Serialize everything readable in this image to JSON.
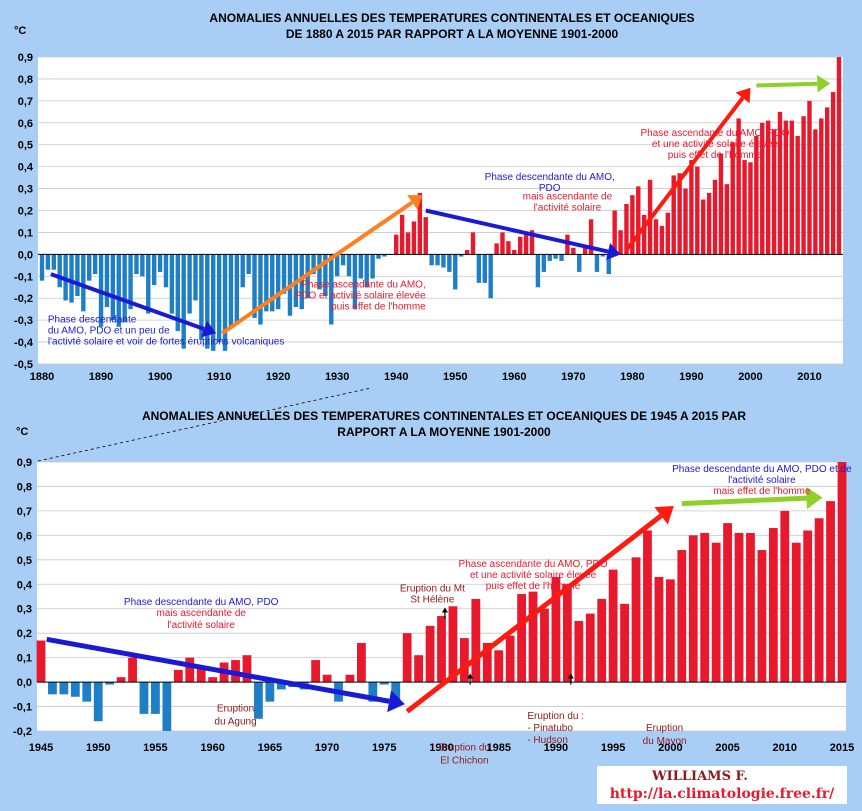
{
  "colors": {
    "background": "#a9cef6",
    "plot_background": "#ffffff",
    "grid": "#c8c8c8",
    "positive_bar": "#e8192c",
    "negative_bar": "#1f7fc6",
    "arrow_blue": "#1a1ad6",
    "arrow_orange": "#ff7f1e",
    "arrow_red": "#ff1a10",
    "arrow_green": "#8ecf2a",
    "text_blue": "#1a1ad6",
    "text_red": "#e8192c",
    "text_darkred": "#8b1a1a"
  },
  "chart_data": [
    {
      "type": "bar",
      "title": "ANOMALIES ANNUELLES DES TEMPERATURES CONTINENTALES  ET OCEANIQUES\nDE 1880 A 2015 PAR RAPPORT A LA MOYENNE 1901-2000",
      "ylabel": "°C",
      "xlabel": "",
      "ylim": [
        -0.5,
        0.9
      ],
      "xlim": [
        1880,
        2015
      ],
      "grid": true,
      "yticks": [
        "0,9",
        "0,8",
        "0,7",
        "0,6",
        "0,5",
        "0,4",
        "0,3",
        "0,2",
        "0,1",
        "0,0",
        "-0,1",
        "-0,2",
        "-0,3",
        "-0,4",
        "-0,5"
      ],
      "xticks": [
        "1880",
        "1890",
        "1900",
        "1910",
        "1920",
        "1930",
        "1940",
        "1950",
        "1960",
        "1970",
        "1980",
        "1990",
        "2000",
        "2010"
      ],
      "x": [
        1880,
        1881,
        1882,
        1883,
        1884,
        1885,
        1886,
        1887,
        1888,
        1889,
        1890,
        1891,
        1892,
        1893,
        1894,
        1895,
        1896,
        1897,
        1898,
        1899,
        1900,
        1901,
        1902,
        1903,
        1904,
        1905,
        1906,
        1907,
        1908,
        1909,
        1910,
        1911,
        1912,
        1913,
        1914,
        1915,
        1916,
        1917,
        1918,
        1919,
        1920,
        1921,
        1922,
        1923,
        1924,
        1925,
        1926,
        1927,
        1928,
        1929,
        1930,
        1931,
        1932,
        1933,
        1934,
        1935,
        1936,
        1937,
        1938,
        1939,
        1940,
        1941,
        1942,
        1943,
        1944,
        1945,
        1946,
        1947,
        1948,
        1949,
        1950,
        1951,
        1952,
        1953,
        1954,
        1955,
        1956,
        1957,
        1958,
        1959,
        1960,
        1961,
        1962,
        1963,
        1964,
        1965,
        1966,
        1967,
        1968,
        1969,
        1970,
        1971,
        1972,
        1973,
        1974,
        1975,
        1976,
        1977,
        1978,
        1979,
        1980,
        1981,
        1982,
        1983,
        1984,
        1985,
        1986,
        1987,
        1988,
        1989,
        1990,
        1991,
        1992,
        1993,
        1994,
        1995,
        1996,
        1997,
        1998,
        1999,
        2000,
        2001,
        2002,
        2003,
        2004,
        2005,
        2006,
        2007,
        2008,
        2009,
        2010,
        2011,
        2012,
        2013,
        2014,
        2015
      ],
      "values": [
        -0.12,
        -0.07,
        -0.07,
        -0.15,
        -0.21,
        -0.22,
        -0.19,
        -0.26,
        -0.12,
        -0.09,
        -0.33,
        -0.24,
        -0.3,
        -0.33,
        -0.31,
        -0.25,
        -0.09,
        -0.1,
        -0.27,
        -0.14,
        -0.08,
        -0.15,
        -0.27,
        -0.35,
        -0.43,
        -0.27,
        -0.21,
        -0.39,
        -0.43,
        -0.44,
        -0.4,
        -0.44,
        -0.33,
        -0.32,
        -0.15,
        -0.09,
        -0.29,
        -0.32,
        -0.26,
        -0.26,
        -0.25,
        -0.18,
        -0.28,
        -0.24,
        -0.25,
        -0.2,
        -0.09,
        -0.16,
        -0.19,
        -0.32,
        -0.1,
        -0.05,
        -0.1,
        -0.25,
        -0.11,
        -0.15,
        -0.11,
        -0.02,
        -0.01,
        0.0,
        0.09,
        0.18,
        0.1,
        0.15,
        0.28,
        0.17,
        -0.05,
        -0.05,
        -0.06,
        -0.08,
        -0.16,
        -0.01,
        0.02,
        0.1,
        -0.13,
        -0.13,
        -0.2,
        0.05,
        0.1,
        0.06,
        0.02,
        0.08,
        0.09,
        0.11,
        -0.15,
        -0.08,
        -0.03,
        -0.02,
        -0.03,
        0.09,
        0.03,
        -0.08,
        0.03,
        0.16,
        -0.08,
        -0.01,
        -0.09,
        0.2,
        0.11,
        0.23,
        0.27,
        0.31,
        0.18,
        0.34,
        0.16,
        0.13,
        0.19,
        0.36,
        0.37,
        0.3,
        0.43,
        0.4,
        0.25,
        0.28,
        0.34,
        0.46,
        0.32,
        0.51,
        0.62,
        0.43,
        0.42,
        0.54,
        0.6,
        0.61,
        0.57,
        0.65,
        0.61,
        0.61,
        0.54,
        0.63,
        0.7,
        0.57,
        0.62,
        0.67,
        0.74,
        0.9
      ],
      "annotations": [
        {
          "color": "#1a1ad6",
          "lines": [
            "Phase descendante",
            "du AMO, PDO et un peu de",
            "l'activté solaire et voir de fortes éruptions volcaniques"
          ]
        },
        {
          "color": "#e8192c",
          "lines": [
            "Phase ascendante du AMO,",
            "PDO et activité solaire élevée",
            "puis effet de l'homme"
          ]
        },
        {
          "color": "#1a1ad6",
          "lines": [
            "Phase descendante du AMO,",
            "PDO"
          ]
        },
        {
          "color": "#e8192c",
          "lines": [
            "mais ascendante de",
            "l'activité  solaire"
          ]
        },
        {
          "color": "#e8192c",
          "lines": [
            "Phase ascendante du AMO, PDO",
            "et une activité solaire élevée",
            "puis effet de l'homme"
          ]
        }
      ]
    },
    {
      "type": "bar",
      "title": "ANOMALIES ANNUELLES DES TEMPERATURES CONTINENTALES  ET OCEANIQUES DE 1945 A 2015 PAR\nRAPPORT A LA MOYENNE 1901-2000",
      "ylabel": "°C",
      "xlabel": "",
      "ylim": [
        -0.2,
        0.9
      ],
      "xlim": [
        1945,
        2015
      ],
      "grid": true,
      "yticks": [
        "0,9",
        "0,8",
        "0,7",
        "0,6",
        "0,5",
        "0,4",
        "0,3",
        "0,2",
        "0,1",
        "0,0",
        "-0,1",
        "-0,2"
      ],
      "xticks": [
        "1945",
        "1950",
        "1955",
        "1960",
        "1965",
        "1970",
        "1975",
        "1980",
        "1985",
        "1990",
        "1995",
        "2000",
        "2005",
        "2010",
        "2015"
      ],
      "x": [
        1945,
        1946,
        1947,
        1948,
        1949,
        1950,
        1951,
        1952,
        1953,
        1954,
        1955,
        1956,
        1957,
        1958,
        1959,
        1960,
        1961,
        1962,
        1963,
        1964,
        1965,
        1966,
        1967,
        1968,
        1969,
        1970,
        1971,
        1972,
        1973,
        1974,
        1975,
        1976,
        1977,
        1978,
        1979,
        1980,
        1981,
        1982,
        1983,
        1984,
        1985,
        1986,
        1987,
        1988,
        1989,
        1990,
        1991,
        1992,
        1993,
        1994,
        1995,
        1996,
        1997,
        1998,
        1999,
        2000,
        2001,
        2002,
        2003,
        2004,
        2005,
        2006,
        2007,
        2008,
        2009,
        2010,
        2011,
        2012,
        2013,
        2014,
        2015
      ],
      "values": [
        0.17,
        -0.05,
        -0.05,
        -0.06,
        -0.08,
        -0.16,
        -0.01,
        0.02,
        0.1,
        -0.13,
        -0.13,
        -0.2,
        0.05,
        0.1,
        0.06,
        0.02,
        0.08,
        0.09,
        0.11,
        -0.15,
        -0.08,
        -0.03,
        -0.02,
        -0.03,
        0.09,
        0.03,
        -0.08,
        0.03,
        0.16,
        -0.08,
        -0.01,
        -0.09,
        0.2,
        0.11,
        0.23,
        0.27,
        0.31,
        0.18,
        0.34,
        0.16,
        0.13,
        0.19,
        0.36,
        0.37,
        0.3,
        0.43,
        0.4,
        0.25,
        0.28,
        0.34,
        0.46,
        0.32,
        0.51,
        0.62,
        0.43,
        0.42,
        0.54,
        0.6,
        0.61,
        0.57,
        0.65,
        0.61,
        0.61,
        0.54,
        0.63,
        0.7,
        0.57,
        0.62,
        0.67,
        0.74,
        0.9
      ],
      "annotations": [
        {
          "color": "#1a1ad6",
          "lines": [
            "Phase descendante du AMO, PDO"
          ]
        },
        {
          "color": "#e8192c",
          "lines": [
            "mais ascendante de",
            "l'activité solaire"
          ]
        },
        {
          "color": "#e8192c",
          "lines": [
            "Phase ascendante du AMO, PDO",
            "et une activité solaire élevée",
            "puis effet de l'homme"
          ]
        },
        {
          "color": "#1a1ad6",
          "lines": [
            "Phase descendante du AMO, PDO et de",
            "l'activité solaire"
          ]
        },
        {
          "color": "#e8192c",
          "lines": [
            "mais effet de l'homme"
          ]
        },
        {
          "color": "#8b1a1a",
          "lines": [
            "Eruption du Mt",
            "St Hélène"
          ]
        },
        {
          "color": "#8b1a1a",
          "lines": [
            "Eruption",
            "du Agung"
          ]
        },
        {
          "color": "#8b1a1a",
          "lines": [
            "Eruption du",
            "El Chichon"
          ]
        },
        {
          "color": "#8b1a1a",
          "lines": [
            "Eruption du :",
            "- Pinatubo",
            "- Hudson"
          ]
        },
        {
          "color": "#8b1a1a",
          "lines": [
            "Eruption",
            "du Mayon"
          ]
        }
      ]
    }
  ],
  "signature": {
    "name": "WILLIAMS F.",
    "url": "http://la.climatologie.free.fr/"
  }
}
